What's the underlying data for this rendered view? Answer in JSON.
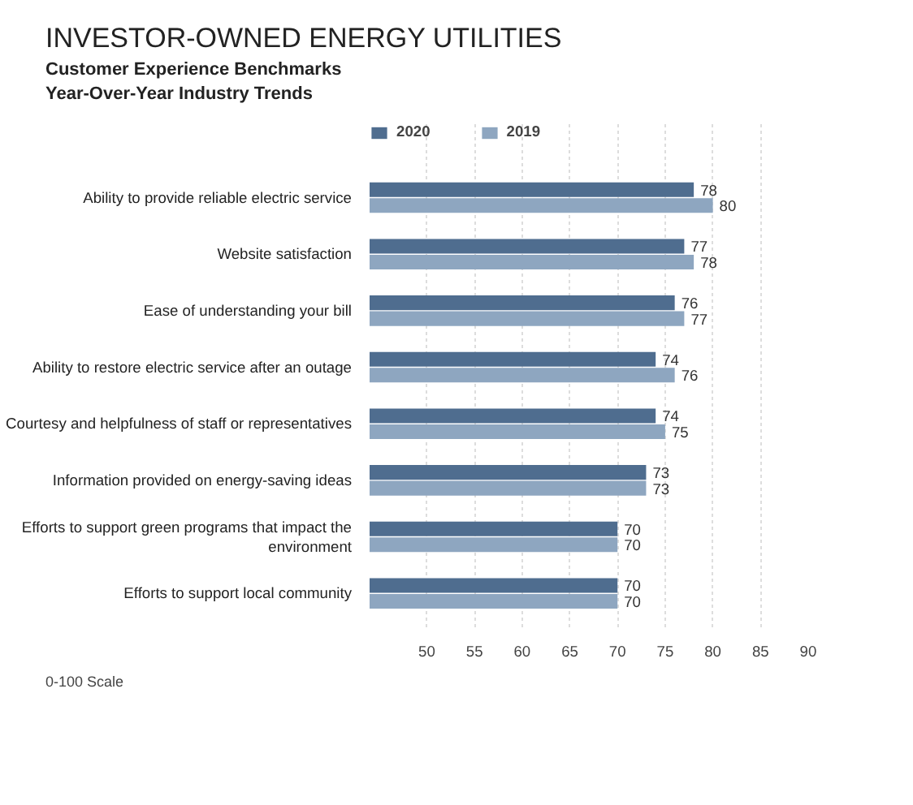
{
  "chart_data": {
    "type": "bar",
    "orientation": "horizontal",
    "title": "INVESTOR-OWNED ENERGY UTILITIES",
    "subtitle": "Customer Experience Benchmarks\nYear-Over-Year Industry Trends",
    "categories": [
      "Ability to provide reliable electric service",
      "Website satisfaction",
      "Ease of understanding your bill",
      "Ability to restore electric service after an outage",
      "Courtesy and helpfulness of staff or representatives",
      "Information provided on energy-saving ideas",
      "Efforts to support green programs that impact the environment",
      "Efforts to support local community"
    ],
    "series": [
      {
        "name": "2020",
        "color": "#4f6d8f",
        "values": [
          78,
          77,
          76,
          74,
          74,
          73,
          70,
          70
        ]
      },
      {
        "name": "2019",
        "color": "#8ea6c0",
        "values": [
          80,
          78,
          77,
          76,
          75,
          73,
          70,
          70
        ]
      }
    ],
    "xlim": [
      44,
      90
    ],
    "xticks": [
      50,
      55,
      60,
      65,
      70,
      75,
      80,
      85,
      90
    ],
    "grid": "x",
    "legend": "top left",
    "data_labels": true,
    "annotations": [
      "0-100 Scale"
    ]
  }
}
